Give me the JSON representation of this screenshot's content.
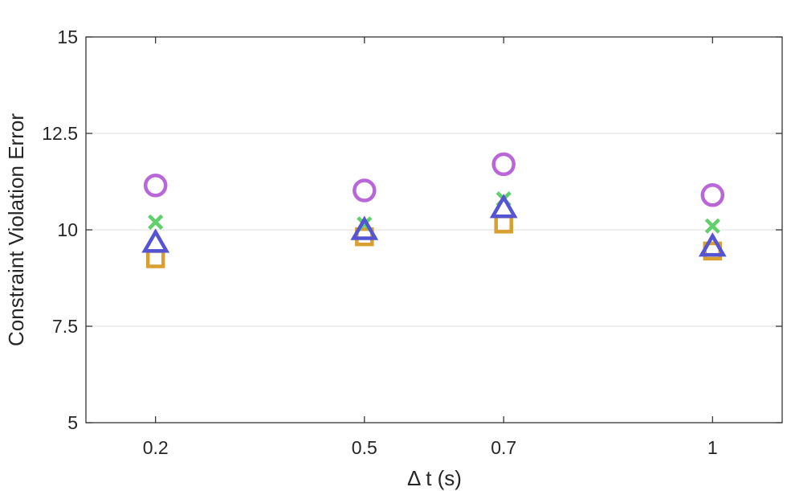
{
  "chart_data": {
    "type": "scatter",
    "title": "",
    "xlabel": "Δ t (s)",
    "ylabel": "Constraint Violation Error",
    "x_ticks": [
      0.2,
      0.5,
      0.7,
      1
    ],
    "x_tick_labels": [
      "0.2",
      "0.5",
      "0.7",
      "1"
    ],
    "xlim": [
      0.1,
      1.1
    ],
    "ylim": [
      5,
      15
    ],
    "y_ticks": [
      5,
      7.5,
      10,
      12.5,
      15
    ],
    "y_tick_labels": [
      "5",
      "7.5",
      "10",
      "12.5",
      "15"
    ],
    "grid": "horizontal",
    "legend": "none",
    "series": [
      {
        "marker": "circle",
        "color": "#b967d8",
        "x": [
          0.2,
          0.5,
          0.7,
          1
        ],
        "y": [
          11.15,
          11.02,
          11.7,
          10.9
        ]
      },
      {
        "marker": "x",
        "color": "#5fd06a",
        "x": [
          0.2,
          0.5,
          0.7,
          1
        ],
        "y": [
          10.2,
          10.15,
          10.8,
          10.1
        ]
      },
      {
        "marker": "triangle",
        "color": "#5555d4",
        "x": [
          0.2,
          0.5,
          0.7,
          1
        ],
        "y": [
          9.65,
          9.98,
          10.55,
          9.55
        ]
      },
      {
        "marker": "square",
        "color": "#d8a030",
        "x": [
          0.2,
          0.5,
          0.7,
          1
        ],
        "y": [
          9.25,
          9.82,
          10.15,
          9.45
        ]
      }
    ]
  }
}
